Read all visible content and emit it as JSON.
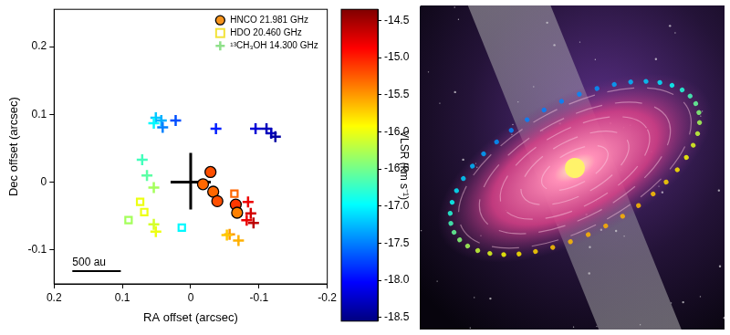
{
  "chart_data": {
    "type": "scatter",
    "xlabel": "RA offset (arcsec)",
    "ylabel": "Dec offset (arcsec)",
    "xlim": [
      0.2,
      -0.2
    ],
    "xticks": [
      0.2,
      0.1,
      0,
      -0.1,
      -0.2
    ],
    "ylim": [
      -0.15,
      0.255
    ],
    "yticks": [
      -0.1,
      0,
      0.1,
      0.2
    ],
    "grid": false,
    "legend": "upper right",
    "series": [
      {
        "name": "HNCO 21.981 GHz",
        "marker": "circle",
        "color": "#f7941d",
        "x": [
          -0.029,
          -0.018,
          -0.033,
          -0.039,
          -0.066,
          -0.068
        ],
        "y": [
          0.015,
          -0.003,
          -0.014,
          -0.028,
          -0.033,
          -0.045
        ],
        "velocity": [
          -15.2,
          -15.3,
          -15.3,
          -15.2,
          -15.1,
          -15.4
        ]
      },
      {
        "name": "HDO 20.460 GHz",
        "marker": "open_square",
        "color": "#f2e33a",
        "x": [
          -0.064,
          -0.068,
          0.074,
          0.068,
          0.091,
          0.013
        ],
        "y": [
          -0.017,
          -0.045,
          -0.029,
          -0.044,
          -0.056,
          -0.067
        ],
        "velocity": [
          -15.3,
          -15.3,
          -16.0,
          -16.0,
          -16.3,
          -17.0
        ]
      },
      {
        "name": "¹³CH₃OH 14.300 GHz",
        "marker": "plus",
        "color": "#8fe08a",
        "x": [
          0.051,
          0.043,
          0.054,
          0.041,
          0.022,
          -0.037,
          -0.095,
          -0.111,
          -0.118,
          -0.124,
          0.071,
          0.064,
          0.054,
          0.054,
          0.051,
          -0.084,
          -0.088,
          -0.092,
          -0.082,
          -0.057,
          -0.07,
          -0.053
        ],
        "y": [
          0.095,
          0.091,
          0.087,
          0.081,
          0.091,
          0.079,
          0.079,
          0.079,
          0.072,
          0.067,
          0.033,
          0.01,
          -0.008,
          -0.062,
          -0.073,
          -0.029,
          -0.046,
          -0.06,
          -0.056,
          -0.077,
          -0.086,
          -0.078
        ],
        "velocity": [
          -17.2,
          -17.3,
          -17.0,
          -17.5,
          -17.7,
          -17.9,
          -18.2,
          -18.3,
          -18.3,
          -18.4,
          -16.7,
          -16.6,
          -16.3,
          -16.1,
          -16.0,
          -14.8,
          -14.7,
          -14.6,
          -14.8,
          -15.5,
          -15.6,
          -15.7
        ]
      }
    ],
    "reference_cross": {
      "x": 0,
      "y": 0
    },
    "scale_bar": {
      "label": "500 au",
      "length": 0.071
    },
    "colorbar": {
      "label": "VLSR (km s⁻¹)",
      "lim": [
        -18.55,
        -14.35
      ],
      "ticks": [
        -14.5,
        {
          "value": -15,
          "label": "-15.0"
        },
        -15.5,
        {
          "value": -16,
          "label": "-16.0"
        },
        -16.5,
        {
          "value": -17,
          "label": "-17.0"
        },
        -17.5,
        {
          "value": -18,
          "label": "-18.0"
        },
        -18.5
      ]
    }
  }
}
